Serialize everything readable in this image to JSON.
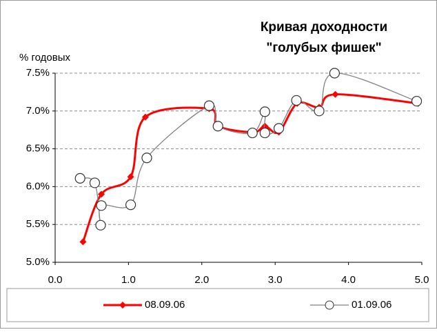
{
  "chart_data": {
    "type": "scatter",
    "title": [
      "Кривая доходности",
      "\"голубых фишек\""
    ],
    "y_label": "% годовых",
    "xlim": [
      0,
      5
    ],
    "xticks": [
      {
        "value": 0,
        "label": "0.0"
      },
      {
        "value": 1,
        "label": "1.0"
      },
      {
        "value": 2,
        "label": "2.0"
      },
      {
        "value": 3,
        "label": "3.0"
      },
      {
        "value": 4,
        "label": "4.0"
      },
      {
        "value": 5,
        "label": "5.0"
      }
    ],
    "ylim": [
      5,
      7.5
    ],
    "yticks": [
      {
        "value": 5,
        "label": "5.0%"
      },
      {
        "value": 5.5,
        "label": "5.5%"
      },
      {
        "value": 6,
        "label": "6.0%"
      },
      {
        "value": 6.5,
        "label": "6.5%"
      },
      {
        "value": 7,
        "label": "7.0%"
      },
      {
        "value": 7.5,
        "label": "7.5%"
      }
    ],
    "grid": true,
    "series": [
      {
        "name": "08.09.06",
        "color": "#ff0000",
        "marker": "diamond",
        "x": [
          0.38,
          0.63,
          1.03,
          1.23,
          2.1,
          2.22,
          2.7,
          2.86,
          3.05,
          3.3,
          3.6,
          3.82,
          4.95
        ],
        "values": [
          5.27,
          5.9,
          6.13,
          6.92,
          7.03,
          6.8,
          6.72,
          6.8,
          6.72,
          7.1,
          7.05,
          7.22,
          7.1
        ]
      },
      {
        "name": "01.09.06",
        "color": "#808080",
        "marker": "circle",
        "x": [
          0.34,
          0.54,
          0.62,
          0.63,
          1.03,
          1.25,
          2.1,
          2.22,
          2.69,
          2.86,
          2.86,
          3.05,
          3.29,
          3.6,
          3.81,
          4.93
        ],
        "values": [
          6.11,
          6.05,
          5.49,
          5.75,
          5.76,
          6.38,
          7.07,
          6.8,
          6.71,
          6.99,
          6.71,
          6.77,
          7.14,
          7.0,
          7.5,
          7.13
        ]
      }
    ]
  }
}
